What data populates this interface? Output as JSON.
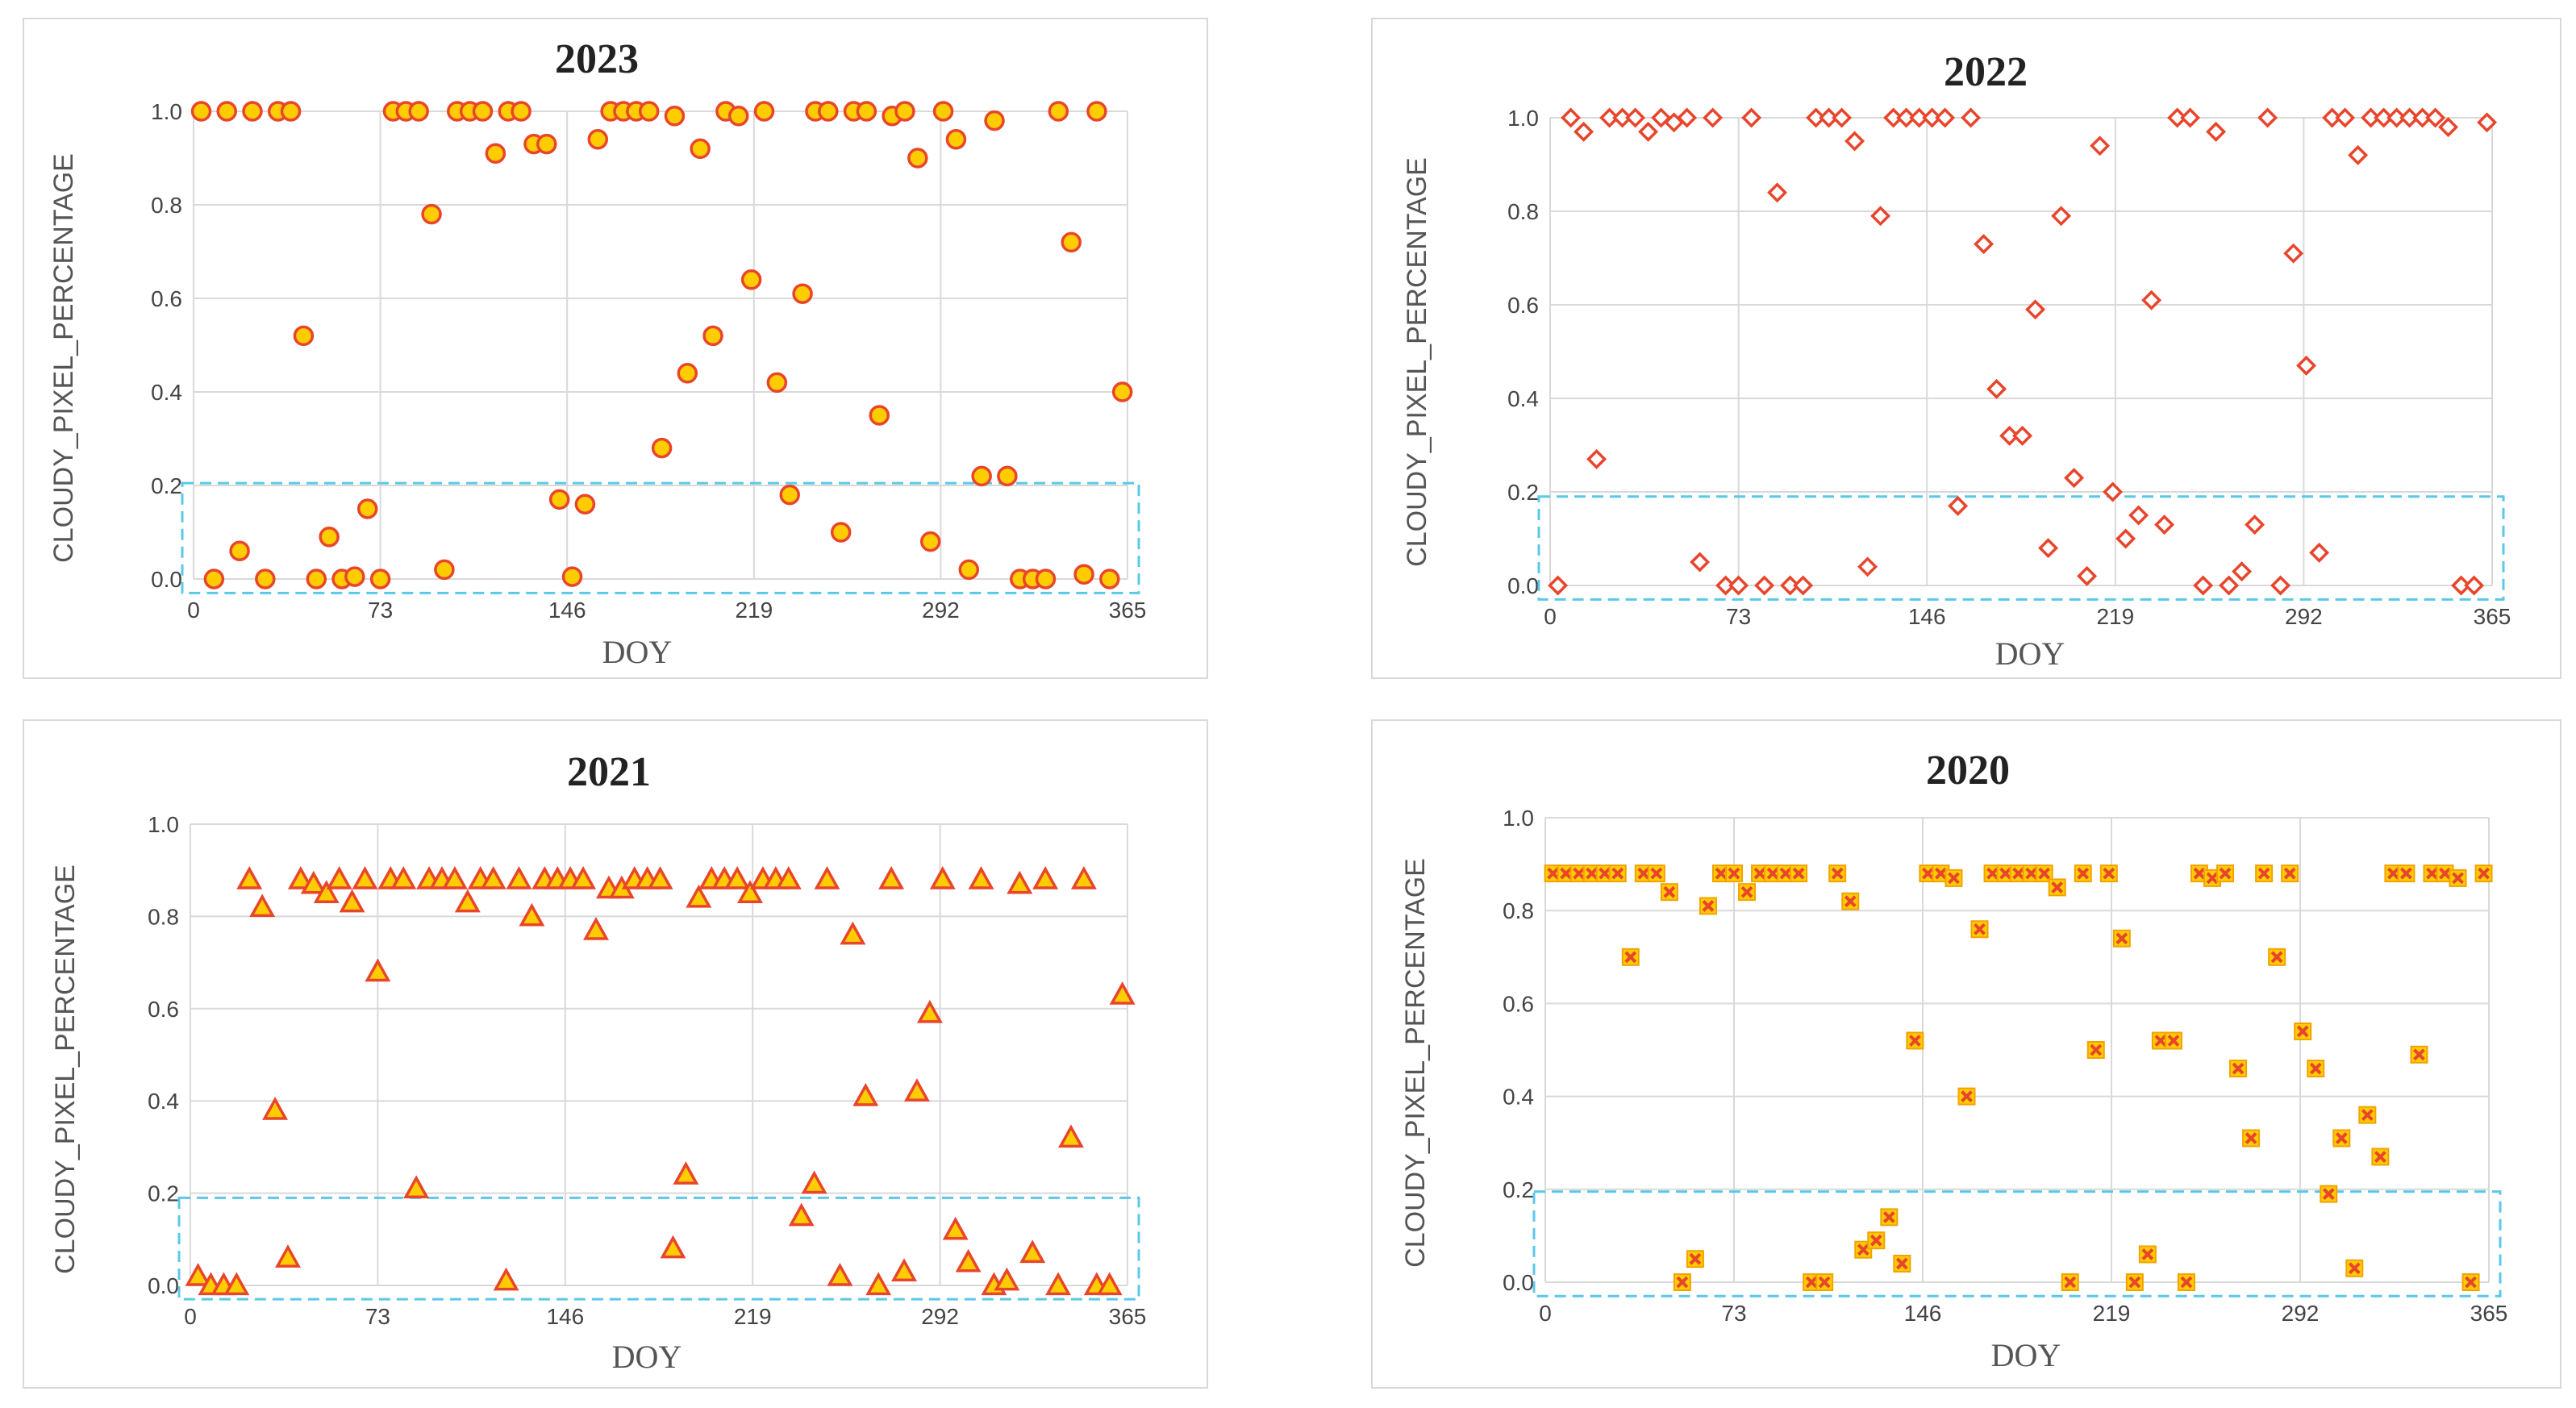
{
  "chart_data": [
    {
      "type": "scatter",
      "title": "2023",
      "xlabel": "DOY",
      "ylabel": "CLOUDY_PIXEL_PERCENTAGE",
      "xlim": [
        0,
        365
      ],
      "ylim": [
        0,
        1
      ],
      "xticks": [
        "0",
        "73",
        "146",
        "219",
        "292",
        "365"
      ],
      "yticks": [
        "0.0",
        "0.2",
        "0.4",
        "0.6",
        "0.8",
        "1.0"
      ],
      "grid": true,
      "marker": "circle",
      "marker_fill": "#ffcc00",
      "marker_edge": "#e8452c",
      "highlight_box": {
        "y_from": -0.03,
        "y_to": 0.205,
        "color": "#5bc8ea"
      },
      "x": [
        3,
        8,
        13,
        18,
        23,
        28,
        33,
        38,
        43,
        48,
        53,
        58,
        63,
        68,
        73,
        78,
        83,
        88,
        93,
        98,
        103,
        108,
        113,
        118,
        123,
        128,
        133,
        138,
        143,
        148,
        153,
        158,
        163,
        168,
        173,
        178,
        183,
        188,
        193,
        198,
        203,
        208,
        213,
        218,
        223,
        228,
        233,
        238,
        243,
        248,
        253,
        258,
        263,
        268,
        273,
        278,
        283,
        288,
        293,
        298,
        303,
        308,
        313,
        318,
        323,
        328,
        333,
        338,
        343,
        348,
        353,
        358,
        363
      ],
      "y": [
        1.0,
        0.0,
        1.0,
        0.06,
        1.0,
        0.0,
        1.0,
        1.0,
        0.52,
        0.0,
        0.09,
        0.0,
        0.005,
        0.15,
        0.0,
        1.0,
        1.0,
        1.0,
        0.78,
        0.02,
        1.0,
        1.0,
        1.0,
        0.91,
        1.0,
        1.0,
        0.93,
        0.93,
        0.17,
        0.005,
        0.16,
        0.94,
        1.0,
        1.0,
        1.0,
        1.0,
        0.28,
        0.99,
        0.44,
        0.92,
        0.52,
        1.0,
        0.99,
        0.64,
        1.0,
        0.42,
        0.18,
        0.61,
        1.0,
        1.0,
        0.1,
        1.0,
        1.0,
        0.35,
        0.99,
        1.0,
        0.9,
        0.08,
        1.0,
        0.94,
        0.02,
        0.22,
        0.98,
        0.22,
        0.0,
        0.0,
        0.0,
        1.0,
        0.72,
        0.01,
        1.0,
        0.0,
        0.4
      ]
    },
    {
      "type": "scatter",
      "title": "2022",
      "xlabel": "DOY",
      "ylabel": "CLOUDY_PIXEL_PERCENTAGE",
      "xlim": [
        0,
        365
      ],
      "ylim": [
        0,
        1
      ],
      "xticks": [
        "0",
        "73",
        "146",
        "219",
        "292",
        "365"
      ],
      "yticks": [
        "0.0",
        "0.2",
        "0.4",
        "0.6",
        "0.8",
        "1.0"
      ],
      "grid": true,
      "marker": "diamond",
      "marker_fill": "#ffffff",
      "marker_edge": "#e8452c",
      "highlight_box": {
        "y_from": -0.03,
        "y_to": 0.19,
        "color": "#5bc8ea"
      },
      "x": [
        3,
        8,
        13,
        18,
        23,
        28,
        33,
        38,
        43,
        48,
        53,
        58,
        63,
        68,
        73,
        78,
        83,
        88,
        93,
        98,
        103,
        108,
        113,
        118,
        123,
        128,
        133,
        138,
        143,
        148,
        153,
        158,
        163,
        168,
        173,
        178,
        183,
        188,
        193,
        198,
        203,
        208,
        213,
        218,
        223,
        228,
        233,
        238,
        243,
        248,
        253,
        258,
        263,
        268,
        273,
        278,
        283,
        288,
        293,
        298,
        303,
        308,
        313,
        318,
        323,
        328,
        333,
        338,
        343,
        348,
        353,
        358,
        363
      ],
      "y": [
        0.0,
        1.0,
        0.97,
        0.27,
        1.0,
        1.0,
        1.0,
        0.97,
        1.0,
        0.99,
        1.0,
        0.05,
        1.0,
        0.0,
        0.0,
        1.0,
        0.0,
        0.84,
        0.0,
        0.0,
        1.0,
        1.0,
        1.0,
        0.95,
        0.04,
        0.79,
        1.0,
        1.0,
        1.0,
        1.0,
        1.0,
        0.17,
        1.0,
        0.73,
        0.42,
        0.32,
        0.32,
        0.59,
        0.08,
        0.79,
        0.23,
        0.02,
        0.94,
        0.2,
        0.1,
        0.15,
        0.61,
        0.13,
        1.0,
        1.0,
        0.0,
        0.97,
        0.0,
        0.03,
        0.13,
        1.0,
        0.0,
        0.71,
        0.47,
        0.07,
        1.0,
        1.0,
        0.92,
        1.0,
        1.0,
        1.0,
        1.0,
        1.0,
        1.0,
        0.98,
        0.0,
        0.0,
        0.99
      ]
    },
    {
      "type": "scatter",
      "title": "2021",
      "xlabel": "DOY",
      "ylabel": "CLOUDY_PIXEL_PERCENTAGE",
      "xlim": [
        0,
        365
      ],
      "ylim": [
        0,
        1
      ],
      "xticks": [
        "0",
        "73",
        "146",
        "219",
        "292",
        "365"
      ],
      "yticks": [
        "0.0",
        "0.2",
        "0.4",
        "0.6",
        "0.8",
        "1.0"
      ],
      "grid": true,
      "marker": "triangle",
      "marker_fill": "#ffcc00",
      "marker_edge": "#e8452c",
      "highlight_box": {
        "y_from": -0.03,
        "y_to": 0.19,
        "color": "#5bc8ea"
      },
      "x": [
        3,
        8,
        13,
        18,
        23,
        28,
        33,
        38,
        43,
        48,
        53,
        58,
        63,
        68,
        73,
        78,
        83,
        88,
        93,
        98,
        103,
        108,
        113,
        118,
        123,
        128,
        133,
        138,
        143,
        148,
        153,
        158,
        163,
        168,
        173,
        178,
        183,
        188,
        193,
        198,
        203,
        208,
        213,
        218,
        223,
        228,
        233,
        238,
        243,
        248,
        253,
        258,
        263,
        268,
        273,
        278,
        283,
        288,
        293,
        298,
        303,
        308,
        313,
        318,
        323,
        328,
        333,
        338,
        343,
        348,
        353,
        358,
        363
      ],
      "y": [
        0.02,
        0.0,
        0.0,
        0.0,
        0.88,
        0.82,
        0.38,
        0.06,
        0.88,
        0.87,
        0.85,
        0.88,
        0.83,
        0.88,
        0.68,
        0.88,
        0.88,
        0.21,
        0.88,
        0.88,
        0.88,
        0.83,
        0.88,
        0.88,
        0.01,
        0.88,
        0.8,
        0.88,
        0.88,
        0.88,
        0.88,
        0.77,
        0.86,
        0.86,
        0.88,
        0.88,
        0.88,
        0.08,
        0.24,
        0.84,
        0.88,
        0.88,
        0.88,
        0.85,
        0.88,
        0.88,
        0.88,
        0.15,
        0.22,
        0.88,
        0.02,
        0.76,
        0.41,
        0.0,
        0.88,
        0.03,
        0.42,
        0.59,
        0.88,
        0.12,
        0.05,
        0.88,
        0.0,
        0.01,
        0.87,
        0.07,
        0.88,
        0.0,
        0.32,
        0.88,
        0.0,
        0.0,
        0.63
      ]
    },
    {
      "type": "scatter",
      "title": "2020",
      "xlabel": "DOY",
      "ylabel": "CLOUDY_PIXEL_PERCENTAGE",
      "xlim": [
        0,
        365
      ],
      "ylim": [
        0,
        1
      ],
      "xticks": [
        "0",
        "73",
        "146",
        "219",
        "292",
        "365"
      ],
      "yticks": [
        "0.0",
        "0.2",
        "0.4",
        "0.6",
        "0.8",
        "1.0"
      ],
      "grid": true,
      "marker": "xsquare",
      "marker_fill": "#ffcc00",
      "marker_edge": "#e8452c",
      "highlight_box": {
        "y_from": -0.03,
        "y_to": 0.195,
        "color": "#5bc8ea"
      },
      "x": [
        3,
        8,
        13,
        18,
        23,
        28,
        33,
        38,
        43,
        48,
        53,
        58,
        63,
        68,
        73,
        78,
        83,
        88,
        93,
        98,
        103,
        108,
        113,
        118,
        123,
        128,
        133,
        138,
        143,
        148,
        153,
        158,
        163,
        168,
        173,
        178,
        183,
        188,
        193,
        198,
        203,
        208,
        213,
        218,
        223,
        228,
        233,
        238,
        243,
        248,
        253,
        258,
        263,
        268,
        273,
        278,
        283,
        288,
        293,
        298,
        303,
        308,
        313,
        318,
        323,
        328,
        333,
        338,
        343,
        348,
        353,
        358,
        363
      ],
      "y": [
        0.88,
        0.88,
        0.88,
        0.88,
        0.88,
        0.88,
        0.7,
        0.88,
        0.88,
        0.84,
        0.0,
        0.05,
        0.81,
        0.88,
        0.88,
        0.84,
        0.88,
        0.88,
        0.88,
        0.88,
        0.0,
        0.0,
        0.88,
        0.82,
        0.07,
        0.09,
        0.14,
        0.04,
        0.52,
        0.88,
        0.88,
        0.87,
        0.4,
        0.76,
        0.88,
        0.88,
        0.88,
        0.88,
        0.88,
        0.85,
        0.0,
        0.88,
        0.5,
        0.88,
        0.74,
        0.0,
        0.06,
        0.52,
        0.52,
        0.0,
        0.88,
        0.87,
        0.88,
        0.46,
        0.31,
        0.88,
        0.7,
        0.88,
        0.54,
        0.46,
        0.19,
        0.31,
        0.03,
        0.36,
        0.27,
        0.88,
        0.88,
        0.49,
        0.88,
        0.88,
        0.87,
        0.0,
        0.88
      ]
    }
  ]
}
